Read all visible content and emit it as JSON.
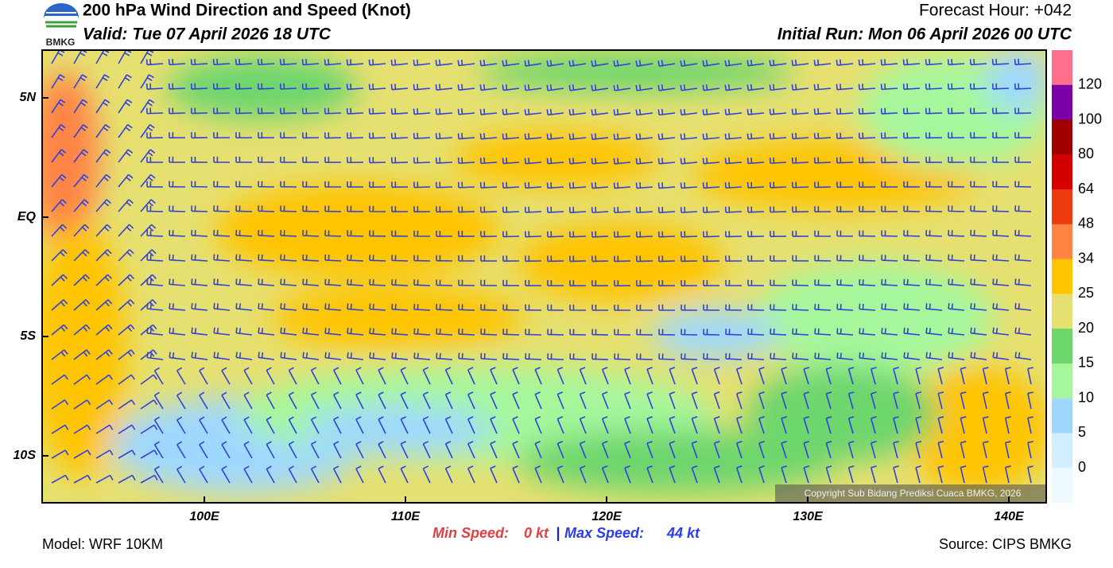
{
  "header": {
    "title": "200 hPa Wind Direction and Speed (Knot)",
    "valid": "Valid: Tue 07 April 2026 18 UTC",
    "forecast_hour": "Forecast Hour: +042",
    "initial_run": "Initial Run: Mon 06 April 2026 00 UTC",
    "logo_text": "BMKG"
  },
  "map": {
    "lat_labels": [
      "5N",
      "EQ",
      "5S",
      "10S"
    ],
    "lon_labels": [
      "100E",
      "110E",
      "120E",
      "130E",
      "140E"
    ],
    "copyright": "Copyright Sub Bidang Prediksi Cuaca BMKG, 2026"
  },
  "colorbar": {
    "colors": [
      "#ff6e8a",
      "#7a00a8",
      "#a00000",
      "#d40000",
      "#ee3a10",
      "#ff8444",
      "#ffc400",
      "#e6e070",
      "#6dd66d",
      "#a6f79c",
      "#9fd8ff",
      "#d3efff",
      "#eef8ff"
    ],
    "labels": [
      "120",
      "100",
      "80",
      "64",
      "48",
      "34",
      "25",
      "20",
      "15",
      "10",
      "5",
      "0"
    ]
  },
  "footer": {
    "min_label": "Min Speed:",
    "min_value": "0 kt",
    "separator": "|",
    "max_label": "Max Speed:",
    "max_value": "44 kt",
    "model": "Model: WRF 10KM",
    "source": "Source: CIPS BMKG"
  }
}
